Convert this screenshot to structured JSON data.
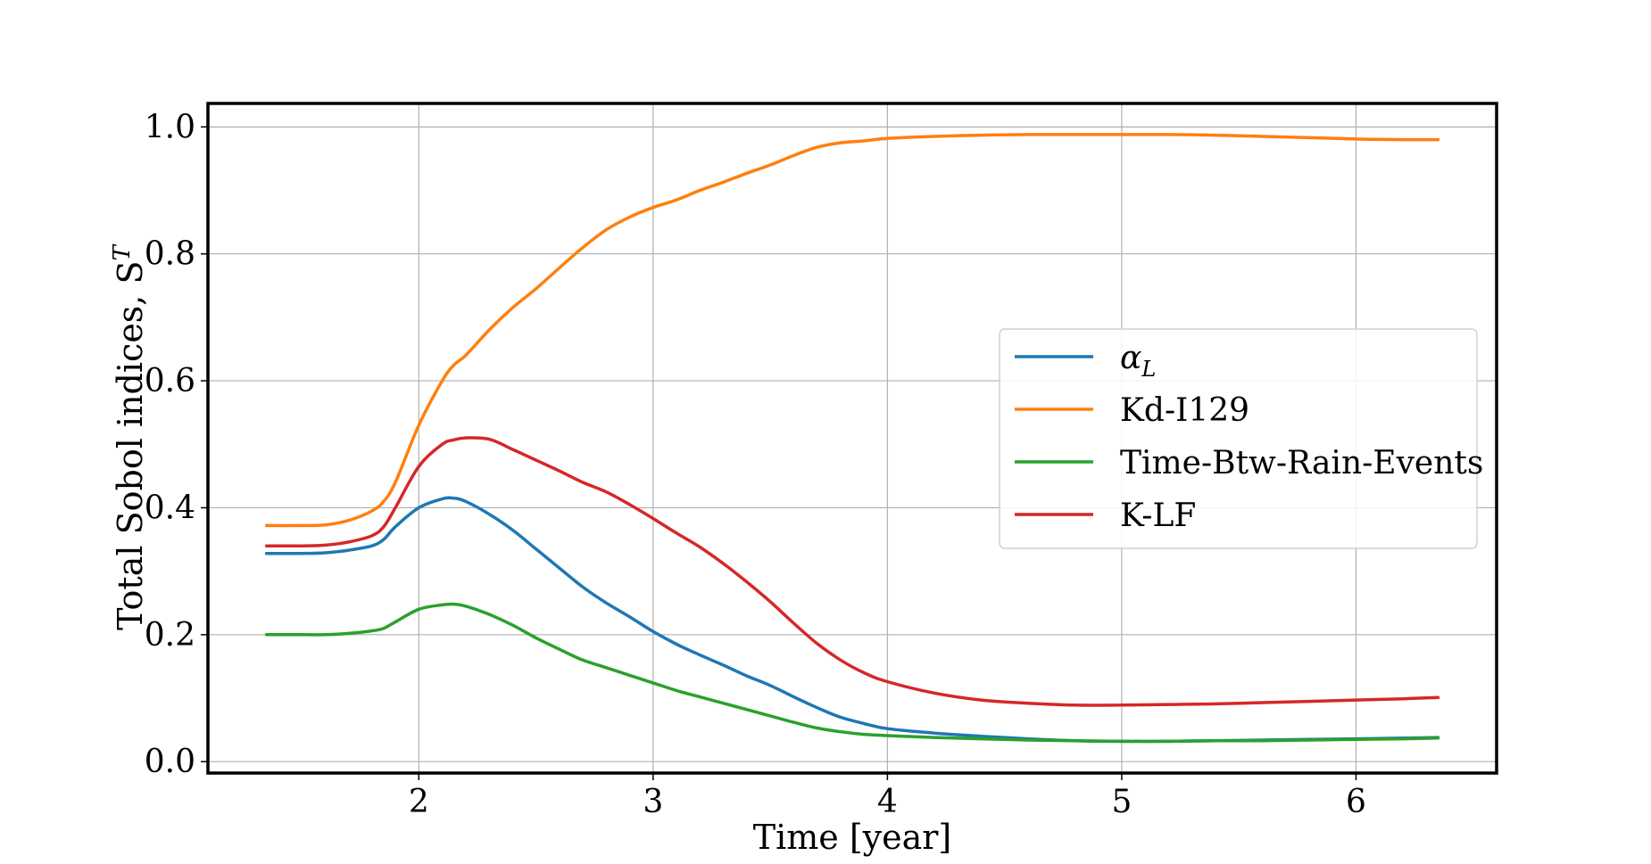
{
  "chart_data": {
    "type": "line",
    "xlabel": "Time [year]",
    "ylabel": "Total Sobol indices, S",
    "ylabel_sup": "T",
    "xlim": [
      1.1,
      6.6
    ],
    "ylim": [
      -0.018,
      1.037
    ],
    "xticks": [
      2,
      3,
      4,
      5,
      6
    ],
    "xtick_labels": [
      "2",
      "3",
      "4",
      "5",
      "6"
    ],
    "yticks": [
      0.0,
      0.2,
      0.4,
      0.6,
      0.8,
      1.0
    ],
    "ytick_labels": [
      "0.0",
      "0.2",
      "0.4",
      "0.6",
      "0.8",
      "1.0"
    ],
    "grid": true,
    "legend_position": "center-right",
    "x": [
      1.35,
      1.5,
      1.6,
      1.7,
      1.8,
      1.85,
      1.9,
      2.0,
      2.1,
      2.15,
      2.2,
      2.3,
      2.4,
      2.5,
      2.6,
      2.7,
      2.8,
      2.9,
      3.0,
      3.1,
      3.2,
      3.3,
      3.4,
      3.5,
      3.6,
      3.7,
      3.8,
      3.9,
      4.0,
      4.2,
      4.4,
      4.6,
      4.8,
      5.0,
      5.2,
      5.4,
      5.6,
      5.8,
      6.0,
      6.2,
      6.35
    ],
    "series": [
      {
        "name": "α",
        "name_sub": "L",
        "color": "#1f77b4",
        "values": [
          0.328,
          0.328,
          0.329,
          0.333,
          0.34,
          0.35,
          0.37,
          0.4,
          0.414,
          0.415,
          0.41,
          0.39,
          0.365,
          0.335,
          0.305,
          0.275,
          0.25,
          0.228,
          0.205,
          0.185,
          0.168,
          0.152,
          0.135,
          0.12,
          0.102,
          0.085,
          0.07,
          0.06,
          0.052,
          0.045,
          0.04,
          0.036,
          0.033,
          0.032,
          0.032,
          0.033,
          0.034,
          0.035,
          0.036,
          0.037,
          0.038
        ]
      },
      {
        "name": "Kd-I129",
        "color": "#ff7f0e",
        "values": [
          0.372,
          0.372,
          0.373,
          0.38,
          0.395,
          0.41,
          0.44,
          0.53,
          0.6,
          0.625,
          0.64,
          0.68,
          0.715,
          0.745,
          0.778,
          0.81,
          0.838,
          0.858,
          0.873,
          0.885,
          0.9,
          0.913,
          0.927,
          0.94,
          0.955,
          0.968,
          0.975,
          0.978,
          0.982,
          0.985,
          0.987,
          0.988,
          0.988,
          0.988,
          0.988,
          0.987,
          0.985,
          0.983,
          0.981,
          0.98,
          0.98
        ]
      },
      {
        "name": "Time-Btw-Rain-Events",
        "color": "#2ca02c",
        "values": [
          0.2,
          0.2,
          0.2,
          0.202,
          0.206,
          0.21,
          0.22,
          0.24,
          0.247,
          0.248,
          0.245,
          0.232,
          0.215,
          0.195,
          0.177,
          0.16,
          0.148,
          0.136,
          0.124,
          0.112,
          0.102,
          0.092,
          0.082,
          0.072,
          0.062,
          0.053,
          0.047,
          0.043,
          0.041,
          0.038,
          0.036,
          0.034,
          0.033,
          0.032,
          0.032,
          0.033,
          0.033,
          0.034,
          0.035,
          0.036,
          0.037
        ]
      },
      {
        "name": "K-LF",
        "color": "#d62728",
        "values": [
          0.34,
          0.34,
          0.341,
          0.346,
          0.356,
          0.37,
          0.4,
          0.465,
          0.5,
          0.507,
          0.51,
          0.508,
          0.492,
          0.475,
          0.458,
          0.44,
          0.425,
          0.405,
          0.383,
          0.36,
          0.338,
          0.312,
          0.283,
          0.252,
          0.218,
          0.186,
          0.16,
          0.14,
          0.126,
          0.108,
          0.097,
          0.092,
          0.089,
          0.089,
          0.09,
          0.091,
          0.093,
          0.095,
          0.097,
          0.099,
          0.101
        ]
      }
    ]
  }
}
